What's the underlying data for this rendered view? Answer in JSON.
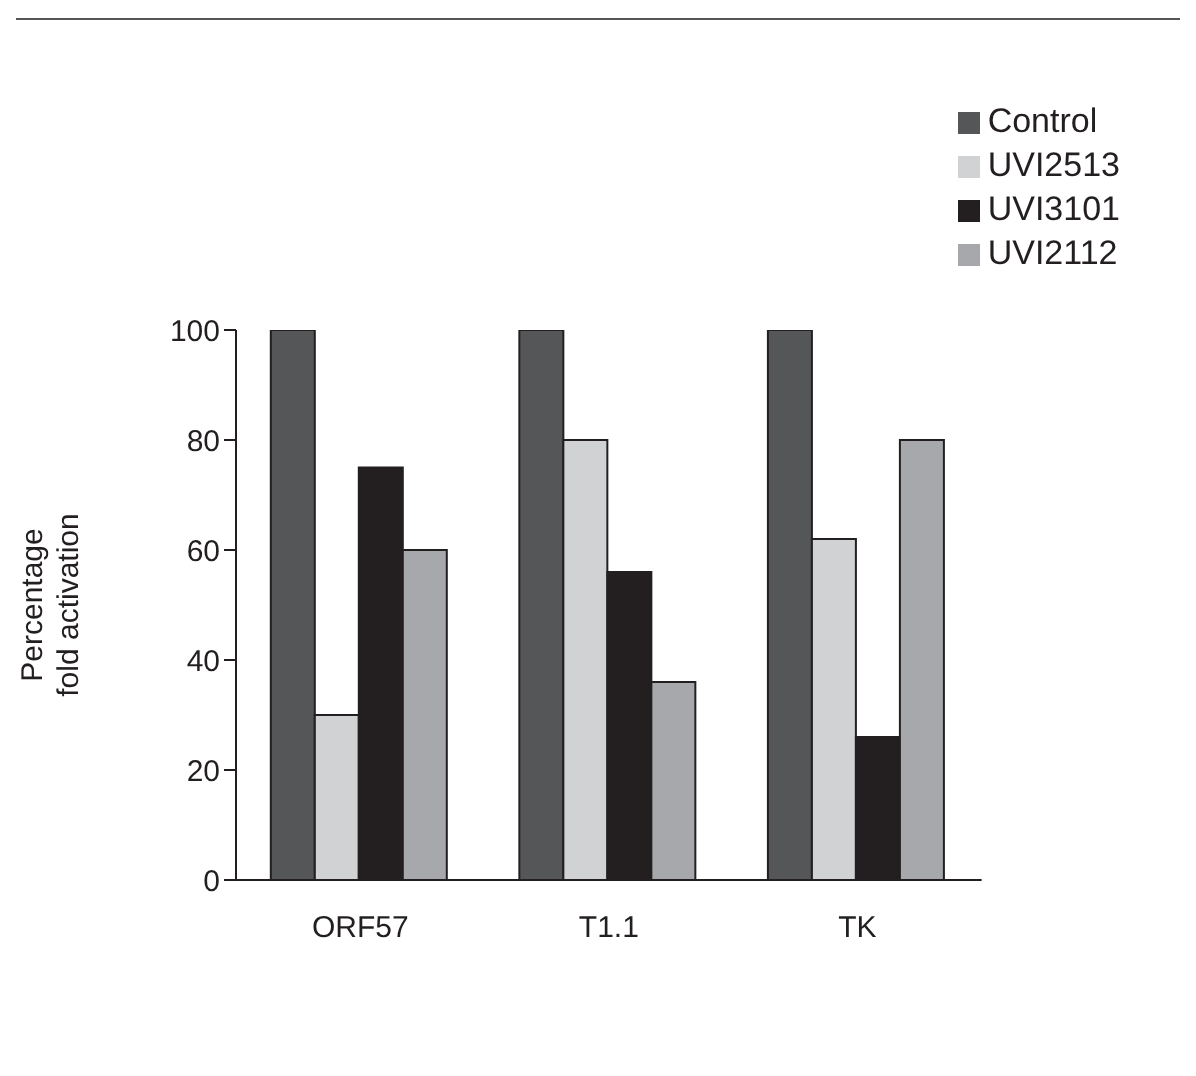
{
  "chart_data": {
    "type": "bar",
    "ylabel": "Percentage\nfold activation",
    "categories": [
      "ORF57",
      "T1.1",
      "TK"
    ],
    "series": [
      {
        "name": "Control",
        "color": "#555658",
        "values": [
          100,
          100,
          100
        ]
      },
      {
        "name": "UVI2513",
        "color": "#d1d2d4",
        "values": [
          30,
          80,
          62
        ]
      },
      {
        "name": "UVI3101",
        "color": "#231f20",
        "values": [
          75,
          56,
          26
        ]
      },
      {
        "name": "UVI2112",
        "color": "#a7a8ab",
        "values": [
          60,
          36,
          80
        ]
      }
    ],
    "ylim": [
      0,
      100
    ],
    "yticks": [
      0,
      20,
      40,
      60,
      80,
      100
    ],
    "grid": false,
    "legend": "top right"
  }
}
